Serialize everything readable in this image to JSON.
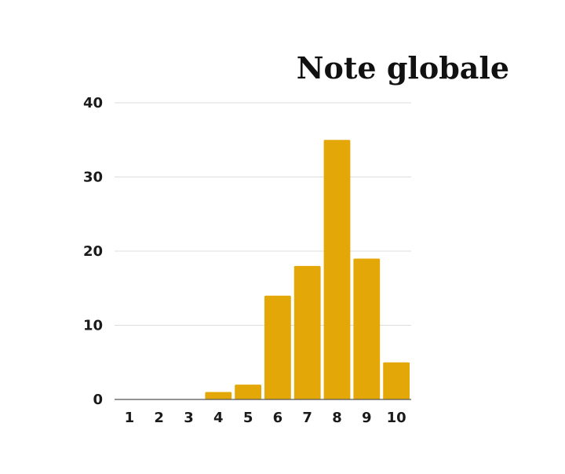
{
  "chart_data": {
    "type": "bar",
    "title": "Note globale",
    "xlabel": "",
    "ylabel": "",
    "categories": [
      "1",
      "2",
      "3",
      "4",
      "5",
      "6",
      "7",
      "8",
      "9",
      "10"
    ],
    "values": [
      0,
      0,
      0,
      1,
      2,
      14,
      18,
      35,
      19,
      5
    ],
    "ylim": [
      0,
      40
    ],
    "yticks": [
      0,
      10,
      20,
      30,
      40
    ],
    "grid": true,
    "legend": "none",
    "bar_color": "#E3A808"
  }
}
